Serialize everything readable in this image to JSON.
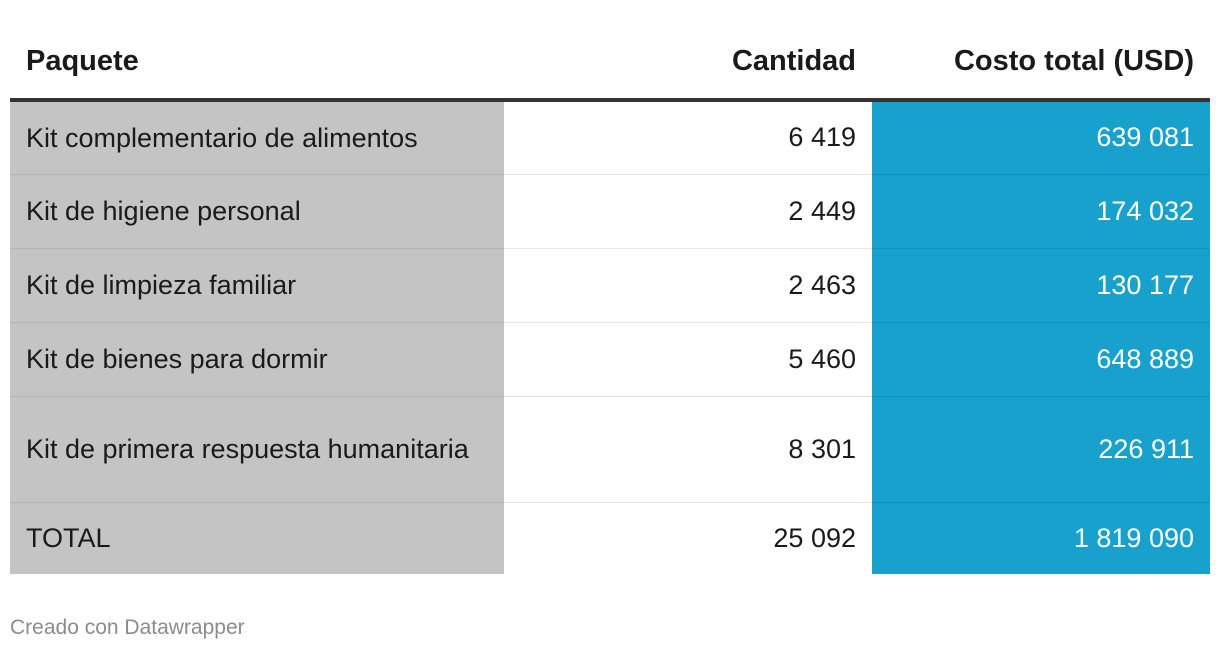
{
  "chart_data": {
    "type": "table",
    "columns": [
      "Paquete",
      "Cantidad",
      "Costo total (USD)"
    ],
    "rows": [
      {
        "name": "Kit complementario de alimentos",
        "cantidad": "6 419",
        "costo": "639 081"
      },
      {
        "name": "Kit de higiene personal",
        "cantidad": "2 449",
        "costo": "174 032"
      },
      {
        "name": "Kit de limpieza familiar",
        "cantidad": "2 463",
        "costo": "130 177"
      },
      {
        "name": "Kit de bienes para dormir",
        "cantidad": "5 460",
        "costo": "648 889"
      },
      {
        "name": "Kit de primera respuesta humanitaria",
        "cantidad": "8 301",
        "costo": "226 911"
      },
      {
        "name": "TOTAL",
        "cantidad": "25 092",
        "costo": "1 819 090"
      }
    ],
    "colors": {
      "name_column_bg": "#c4c4c4",
      "cost_column_bg": "#18a1cd",
      "cost_text": "#ffffff"
    }
  },
  "footer": {
    "credit": "Creado con Datawrapper"
  }
}
